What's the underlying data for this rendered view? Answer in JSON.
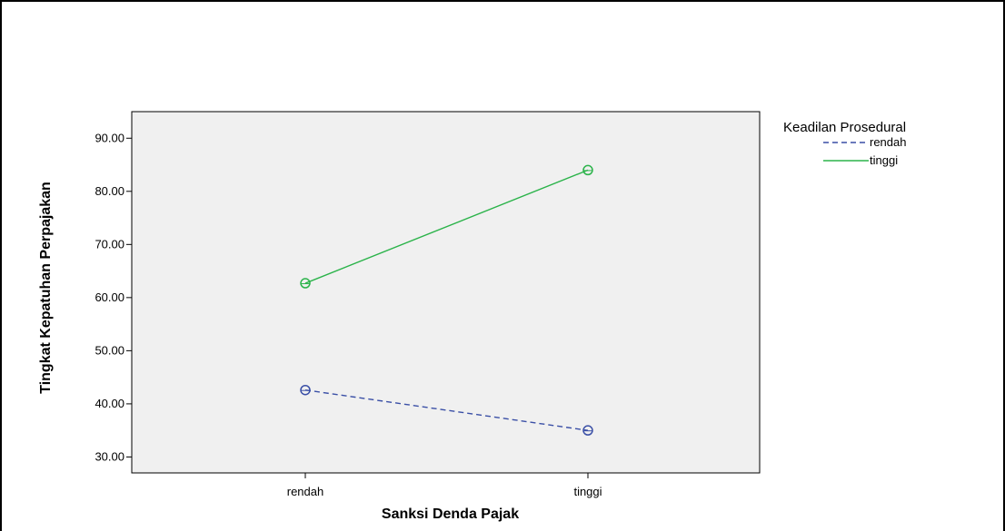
{
  "chart_data": {
    "type": "line",
    "title": "",
    "xlabel": "Sanksi Denda Pajak",
    "ylabel": "Tingkat Kepatuhan Perpajakan",
    "categories": [
      "rendah",
      "tinggi"
    ],
    "ylim": [
      27,
      95
    ],
    "yticks": [
      "30.00",
      "40.00",
      "50.00",
      "60.00",
      "70.00",
      "80.00",
      "90.00"
    ],
    "ytick_values": [
      30,
      40,
      50,
      60,
      70,
      80,
      90
    ],
    "legend": {
      "title": "Keadilan Prosedural",
      "position": "right"
    },
    "grid": false,
    "series": [
      {
        "name": "rendah",
        "values": [
          42.6,
          35.0
        ],
        "color": "#3a4fa6",
        "dash": "dashed",
        "marker": "circle"
      },
      {
        "name": "tinggi",
        "values": [
          62.7,
          84.0
        ],
        "color": "#2bb34a",
        "dash": "solid",
        "marker": "circle"
      }
    ],
    "plot_background": "#f0f0f0"
  }
}
